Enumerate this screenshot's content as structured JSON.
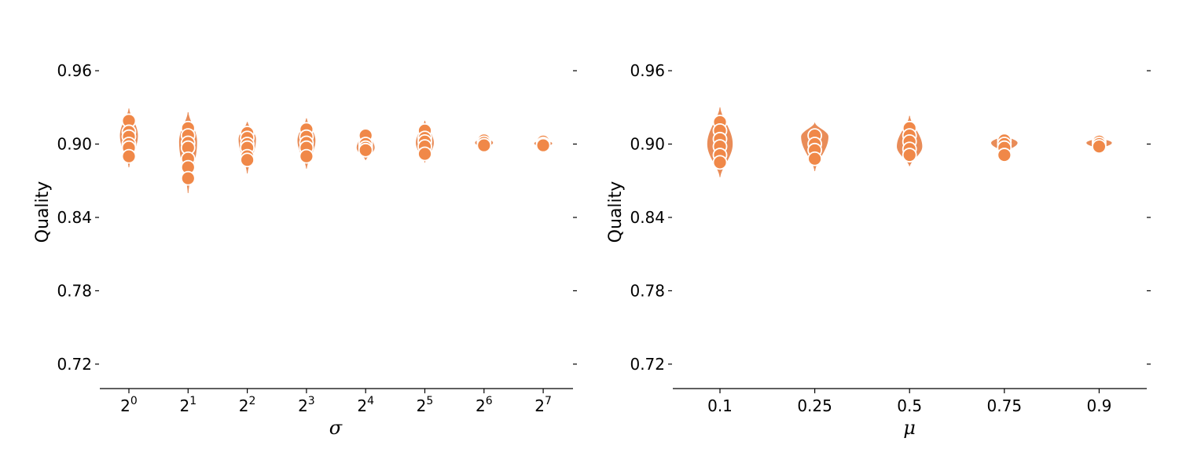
{
  "chart_data": [
    {
      "type": "violin",
      "xlabel": "σ",
      "ylabel": "Quality",
      "ylim": [
        0.7,
        1.005
      ],
      "yticks": [
        0.72,
        0.78,
        0.84,
        0.9,
        0.96
      ],
      "ytick_labels": [
        "0.72",
        "0.78",
        "0.84",
        "0.90",
        "0.96"
      ],
      "color": "#e98c58",
      "point_color": "#f08848",
      "grid": false,
      "categories": [
        {
          "base": "2",
          "exp": "0",
          "min": 0.881,
          "max": 0.929,
          "center": 0.907,
          "width": 0.29,
          "points": [
            0.919,
            0.91,
            0.906,
            0.9,
            0.897,
            0.89
          ]
        },
        {
          "base": "2",
          "exp": "1",
          "min": 0.86,
          "max": 0.926,
          "center": 0.902,
          "width": 0.29,
          "points": [
            0.913,
            0.907,
            0.901,
            0.897,
            0.888,
            0.881,
            0.872
          ]
        },
        {
          "base": "2",
          "exp": "2",
          "min": 0.876,
          "max": 0.918,
          "center": 0.904,
          "width": 0.28,
          "points": [
            0.909,
            0.905,
            0.9,
            0.897,
            0.89,
            0.887
          ]
        },
        {
          "base": "2",
          "exp": "3",
          "min": 0.88,
          "max": 0.921,
          "center": 0.903,
          "width": 0.29,
          "points": [
            0.912,
            0.906,
            0.901,
            0.897,
            0.89
          ]
        },
        {
          "base": "2",
          "exp": "4",
          "min": 0.887,
          "max": 0.911,
          "center": 0.897,
          "width": 0.29,
          "points": [
            0.907,
            0.9,
            0.897,
            0.895
          ]
        },
        {
          "base": "2",
          "exp": "5",
          "min": 0.885,
          "max": 0.919,
          "center": 0.901,
          "width": 0.29,
          "points": [
            0.911,
            0.905,
            0.902,
            0.898,
            0.892
          ]
        },
        {
          "base": "2",
          "exp": "6",
          "min": 0.897,
          "max": 0.906,
          "center": 0.901,
          "width": 0.29,
          "points": [
            0.903,
            0.901,
            0.899
          ]
        },
        {
          "base": "2",
          "exp": "7",
          "min": 0.897,
          "max": 0.904,
          "center": 0.9005,
          "width": 0.29,
          "points": [
            0.902,
            0.9,
            0.899
          ]
        }
      ]
    },
    {
      "type": "violin",
      "xlabel": "μ",
      "ylabel": "Quality",
      "ylim": [
        0.7,
        1.005
      ],
      "yticks": [
        0.72,
        0.78,
        0.84,
        0.9,
        0.96
      ],
      "ytick_labels": [
        "0.72",
        "0.78",
        "0.84",
        "0.90",
        "0.96"
      ],
      "color": "#e98c58",
      "point_color": "#f08848",
      "grid": false,
      "categories": [
        {
          "label": "0.1",
          "min": 0.873,
          "max": 0.93,
          "center": 0.9,
          "width": 0.26,
          "points": [
            0.918,
            0.911,
            0.904,
            0.898,
            0.891,
            0.885
          ]
        },
        {
          "label": "0.25",
          "min": 0.878,
          "max": 0.917,
          "center": 0.906,
          "width": 0.28,
          "points": [
            0.907,
            0.9,
            0.895,
            0.888
          ]
        },
        {
          "label": "0.5",
          "min": 0.882,
          "max": 0.923,
          "center": 0.898,
          "width": 0.26,
          "points": [
            0.913,
            0.907,
            0.902,
            0.896,
            0.891
          ]
        },
        {
          "label": "0.75",
          "min": 0.893,
          "max": 0.907,
          "center": 0.901,
          "width": 0.27,
          "points": [
            0.903,
            0.9,
            0.897,
            0.891
          ]
        },
        {
          "label": "0.9",
          "min": 0.896,
          "max": 0.905,
          "center": 0.901,
          "width": 0.26,
          "points": [
            0.902,
            0.9,
            0.898
          ]
        }
      ]
    }
  ]
}
